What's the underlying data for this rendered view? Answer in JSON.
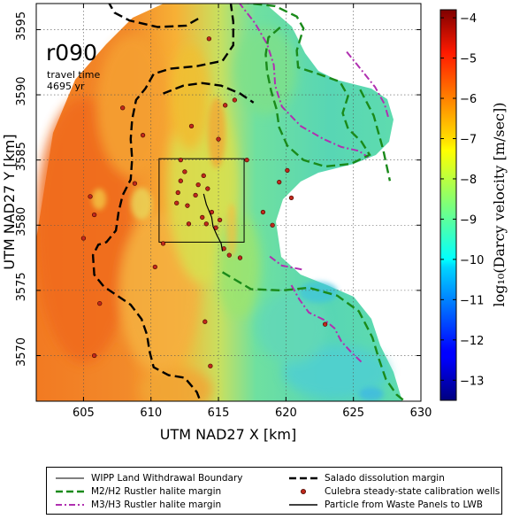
{
  "map": {
    "run_label": "r090",
    "travel_time_label": "travel time",
    "travel_time_value": "4695 yr",
    "x_axis_label": "UTM NAD27 X [km]",
    "y_axis_label": "UTM NAD27 Y [km]",
    "x_range": [
      601.5,
      630
    ],
    "y_range": [
      3566.5,
      3597
    ],
    "x_ticks": [
      605,
      610,
      615,
      620,
      625,
      630
    ],
    "y_ticks": [
      3570,
      3575,
      3580,
      3585,
      3590,
      3595
    ],
    "grid": "dotted",
    "colorbar": {
      "label": "log₁₀(Darcy velocity [m/sec])",
      "min": -13.5,
      "max": -3.8,
      "ticks": [
        -4,
        -5,
        -6,
        -7,
        -8,
        -9,
        -10,
        -11,
        -12,
        -13
      ],
      "tick_labels": [
        "−4",
        "−5",
        "−6",
        "−7",
        "−8",
        "−9",
        "−10",
        "−11",
        "−12",
        "−13"
      ],
      "colormap": "jet"
    },
    "wipp_boundary": {
      "x": [
        610.6,
        616.9
      ],
      "y": [
        3578.7,
        3585.1
      ]
    },
    "colors": {
      "m2_margin": "#1a8a1a",
      "m3_margin": "#b030b0",
      "salado_margin": "#000000",
      "well_fill": "#c0281c"
    },
    "wells": [
      [
        605.5,
        3582.2
      ],
      [
        605.8,
        3580.8
      ],
      [
        605.0,
        3579.0
      ],
      [
        606.2,
        3574.0
      ],
      [
        605.8,
        3570.0
      ],
      [
        607.9,
        3589.0
      ],
      [
        608.8,
        3583.2
      ],
      [
        609.4,
        3586.9
      ],
      [
        610.3,
        3576.8
      ],
      [
        610.9,
        3578.6
      ],
      [
        611.9,
        3581.7
      ],
      [
        612.0,
        3582.5
      ],
      [
        612.2,
        3583.4
      ],
      [
        612.5,
        3584.1
      ],
      [
        612.2,
        3585.0
      ],
      [
        612.7,
        3581.5
      ],
      [
        612.8,
        3580.1
      ],
      [
        613.3,
        3582.3
      ],
      [
        613.5,
        3583.1
      ],
      [
        613.9,
        3583.8
      ],
      [
        613.8,
        3580.6
      ],
      [
        614.2,
        3582.8
      ],
      [
        614.5,
        3581.0
      ],
      [
        614.1,
        3580.1
      ],
      [
        614.8,
        3579.8
      ],
      [
        615.1,
        3580.4
      ],
      [
        615.4,
        3578.2
      ],
      [
        615.8,
        3577.7
      ],
      [
        616.6,
        3577.5
      ],
      [
        617.1,
        3585.0
      ],
      [
        615.0,
        3586.6
      ],
      [
        613.0,
        3587.6
      ],
      [
        614.3,
        3594.3
      ],
      [
        615.5,
        3589.2
      ],
      [
        616.2,
        3589.6
      ],
      [
        614.0,
        3572.6
      ],
      [
        619.0,
        3580.0
      ],
      [
        619.5,
        3583.3
      ],
      [
        620.4,
        3582.1
      ],
      [
        620.1,
        3584.2
      ],
      [
        618.3,
        3581.0
      ],
      [
        622.9,
        3572.4
      ],
      [
        614.4,
        3569.2
      ],
      [
        611.0,
        3565.5
      ]
    ],
    "particle_path": [
      [
        613.9,
        3582.4
      ],
      [
        614.1,
        3581.6
      ],
      [
        614.5,
        3580.6
      ],
      [
        614.6,
        3579.9
      ],
      [
        614.9,
        3579.2
      ],
      [
        615.2,
        3578.6
      ],
      [
        615.3,
        3578.0
      ]
    ],
    "salado_margin": [
      [
        [
          606.8,
          3597.2
        ],
        [
          607.3,
          3596.3
        ],
        [
          608.4,
          3595.7
        ],
        [
          610.5,
          3595.2
        ],
        [
          612.6,
          3595.3
        ],
        [
          613.6,
          3595.9
        ]
      ],
      [
        [
          615.9,
          3597.1
        ],
        [
          616.1,
          3595.6
        ],
        [
          616.1,
          3593.8
        ],
        [
          615.3,
          3592.6
        ],
        [
          613.4,
          3592.2
        ],
        [
          611.4,
          3592.0
        ],
        [
          610.2,
          3591.6
        ],
        [
          609.6,
          3590.5
        ],
        [
          608.9,
          3589.6
        ],
        [
          608.6,
          3588.1
        ],
        [
          608.5,
          3586.6
        ],
        [
          608.6,
          3585.1
        ],
        [
          608.5,
          3583.5
        ],
        [
          607.9,
          3582.3
        ],
        [
          607.6,
          3581.0
        ],
        [
          607.4,
          3579.6
        ],
        [
          606.7,
          3578.7
        ],
        [
          606.1,
          3578.5
        ],
        [
          605.7,
          3577.7
        ],
        [
          605.8,
          3576.2
        ],
        [
          606.5,
          3575.3
        ],
        [
          607.5,
          3574.6
        ],
        [
          608.5,
          3573.9
        ],
        [
          609.3,
          3572.8
        ],
        [
          609.7,
          3571.6
        ],
        [
          609.9,
          3570.3
        ],
        [
          610.2,
          3569.1
        ],
        [
          611.3,
          3568.5
        ],
        [
          612.5,
          3568.3
        ],
        [
          613.4,
          3567.2
        ],
        [
          613.7,
          3566.4
        ]
      ],
      [
        [
          610.9,
          3590.1
        ],
        [
          612.4,
          3590.7
        ],
        [
          613.8,
          3590.9
        ],
        [
          615.2,
          3590.7
        ],
        [
          616.6,
          3590.1
        ],
        [
          617.6,
          3589.4
        ]
      ]
    ],
    "m2_margin": [
      [
        [
          616.6,
          3597.1
        ],
        [
          619.2,
          3596.8
        ],
        [
          620.8,
          3596.0
        ],
        [
          621.3,
          3595.1
        ],
        [
          620.8,
          3593.4
        ],
        [
          620.9,
          3592.1
        ],
        [
          622.4,
          3591.6
        ],
        [
          624.0,
          3591.0
        ],
        [
          624.6,
          3589.9
        ],
        [
          624.2,
          3588.6
        ],
        [
          624.6,
          3587.4
        ],
        [
          625.6,
          3586.4
        ],
        [
          626.2,
          3585.4
        ],
        [
          624.8,
          3584.7
        ],
        [
          622.9,
          3584.5
        ],
        [
          621.3,
          3585.0
        ],
        [
          620.1,
          3586.1
        ],
        [
          619.5,
          3587.5
        ],
        [
          619.3,
          3588.9
        ],
        [
          618.9,
          3590.3
        ],
        [
          618.6,
          3591.8
        ],
        [
          618.5,
          3593.1
        ],
        [
          618.7,
          3594.4
        ],
        [
          619.6,
          3595.2
        ]
      ],
      [
        [
          625.5,
          3590.4
        ],
        [
          626.5,
          3588.4
        ],
        [
          627.2,
          3585.8
        ],
        [
          627.7,
          3583.4
        ]
      ],
      [
        [
          615.3,
          3576.4
        ],
        [
          617.4,
          3575.1
        ],
        [
          619.7,
          3575.0
        ],
        [
          621.7,
          3575.2
        ],
        [
          623.8,
          3574.6
        ],
        [
          625.4,
          3573.4
        ],
        [
          626.4,
          3571.4
        ],
        [
          626.9,
          3569.7
        ],
        [
          627.4,
          3568.2
        ],
        [
          628.2,
          3567.0
        ],
        [
          628.8,
          3566.5
        ]
      ]
    ],
    "m3_margin": [
      [
        [
          616.5,
          3597.1
        ],
        [
          617.7,
          3595.5
        ],
        [
          618.6,
          3593.9
        ],
        [
          619.1,
          3592.3
        ],
        [
          619.2,
          3590.7
        ],
        [
          619.7,
          3589.1
        ],
        [
          621.1,
          3587.6
        ],
        [
          622.8,
          3586.6
        ],
        [
          624.1,
          3586.0
        ],
        [
          625.4,
          3585.7
        ],
        [
          626.1,
          3585.2
        ]
      ],
      [
        [
          624.5,
          3593.3
        ],
        [
          625.6,
          3591.9
        ],
        [
          626.6,
          3590.6
        ],
        [
          627.3,
          3589.3
        ],
        [
          627.6,
          3588.2
        ]
      ],
      [
        [
          620.4,
          3575.4
        ],
        [
          621.0,
          3574.3
        ],
        [
          621.7,
          3573.3
        ],
        [
          622.9,
          3572.7
        ],
        [
          623.6,
          3572.1
        ],
        [
          624.1,
          3571.1
        ],
        [
          624.8,
          3570.3
        ],
        [
          625.6,
          3569.5
        ]
      ],
      [
        [
          618.8,
          3577.6
        ],
        [
          619.7,
          3576.9
        ],
        [
          621.2,
          3576.6
        ]
      ]
    ],
    "legend": {
      "items": [
        {
          "label": "WIPP Land Withdrawal Boundary"
        },
        {
          "label": "Salado dissolution margin"
        },
        {
          "label": "M2/H2 Rustler halite margin"
        },
        {
          "label": "Culebra steady-state calibration wells"
        },
        {
          "label": "M3/H3 Rustler halite margin"
        },
        {
          "label": "Particle from Waste Panels to LWB"
        }
      ]
    }
  }
}
